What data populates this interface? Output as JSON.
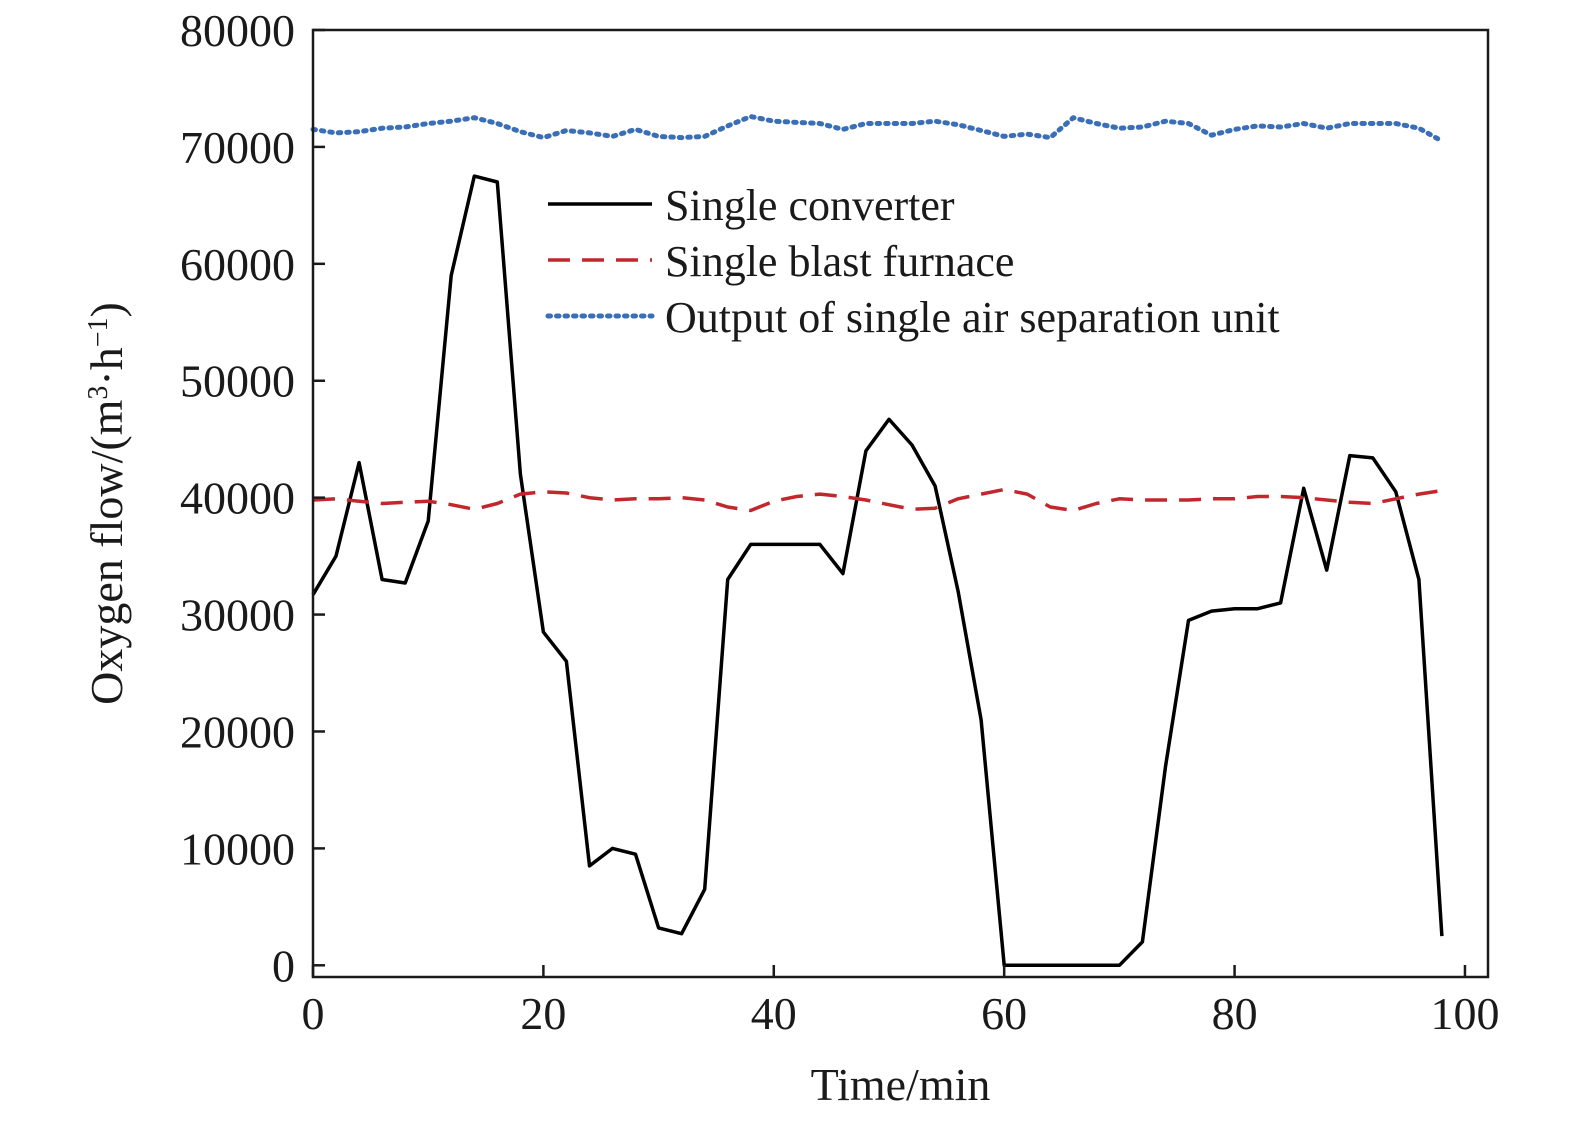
{
  "chart_data": {
    "type": "line",
    "xlabel": "Time/min",
    "ylabel": {
      "main": "Oxygen flow/(m",
      "sup1": "3",
      "mid": "·h",
      "sup2": "−1",
      "end": ")"
    },
    "xlim": [
      0,
      102
    ],
    "ylim": [
      -1000,
      80000
    ],
    "x_ticks": [
      0,
      20,
      40,
      60,
      80,
      100
    ],
    "y_ticks": [
      0,
      10000,
      20000,
      30000,
      40000,
      50000,
      60000,
      70000,
      80000
    ],
    "legend_position": "upper-center",
    "series": [
      {
        "name": "Single converter",
        "color": "#000000",
        "style": "solid",
        "x": [
          0,
          2,
          4,
          6,
          8,
          10,
          12,
          14,
          16,
          18,
          20,
          22,
          24,
          26,
          28,
          30,
          32,
          34,
          36,
          38,
          40,
          42,
          44,
          46,
          48,
          50,
          52,
          54,
          56,
          58,
          60,
          62,
          64,
          66,
          68,
          70,
          72,
          74,
          76,
          78,
          80,
          82,
          84,
          86,
          88,
          90,
          92,
          94,
          96,
          98
        ],
        "values": [
          31700,
          35000,
          43000,
          33000,
          32700,
          38000,
          59000,
          67500,
          67000,
          42000,
          28500,
          26000,
          8500,
          10000,
          9500,
          3200,
          2700,
          6500,
          33000,
          36000,
          36000,
          36000,
          36000,
          33500,
          44000,
          46700,
          44500,
          41000,
          32000,
          21000,
          0,
          0,
          0,
          0,
          0,
          0,
          2000,
          17000,
          29500,
          30300,
          30500,
          30500,
          31000,
          40800,
          33800,
          43600,
          43400,
          40500,
          33000,
          2500
        ]
      },
      {
        "name": "Single blast furnace",
        "color": "#c1272d",
        "style": "dashed",
        "x": [
          0,
          2,
          4,
          6,
          8,
          10,
          12,
          14,
          16,
          18,
          20,
          22,
          24,
          26,
          28,
          30,
          32,
          34,
          36,
          38,
          40,
          42,
          44,
          46,
          48,
          50,
          52,
          54,
          56,
          58,
          60,
          62,
          64,
          66,
          68,
          70,
          72,
          74,
          76,
          78,
          80,
          82,
          84,
          86,
          88,
          90,
          92,
          94,
          96,
          98
        ],
        "values": [
          39800,
          39900,
          39700,
          39500,
          39600,
          39700,
          39400,
          39000,
          39500,
          40300,
          40500,
          40400,
          40000,
          39800,
          39900,
          39900,
          40000,
          39800,
          39200,
          38900,
          39700,
          40100,
          40300,
          40100,
          39800,
          39400,
          39000,
          39100,
          39900,
          40300,
          40700,
          40300,
          39200,
          38900,
          39500,
          39900,
          39800,
          39800,
          39800,
          39900,
          39900,
          40100,
          40100,
          40000,
          39800,
          39600,
          39500,
          39900,
          40300,
          40600
        ]
      },
      {
        "name": "Output of single air separation unit",
        "color": "#3a6fb8",
        "style": "dotted",
        "x": [
          0,
          2,
          4,
          6,
          8,
          10,
          12,
          14,
          16,
          18,
          20,
          22,
          24,
          26,
          28,
          30,
          32,
          34,
          36,
          38,
          40,
          42,
          44,
          46,
          48,
          50,
          52,
          54,
          56,
          58,
          60,
          62,
          64,
          66,
          68,
          70,
          72,
          74,
          76,
          78,
          80,
          82,
          84,
          86,
          88,
          90,
          92,
          94,
          96,
          98
        ],
        "values": [
          71500,
          71200,
          71300,
          71600,
          71700,
          72000,
          72200,
          72500,
          72000,
          71300,
          70800,
          71400,
          71200,
          70900,
          71500,
          70900,
          70800,
          70900,
          71800,
          72600,
          72200,
          72100,
          72000,
          71500,
          72000,
          72000,
          72000,
          72200,
          71900,
          71400,
          70900,
          71100,
          70800,
          72500,
          72000,
          71600,
          71700,
          72200,
          72000,
          71000,
          71500,
          71800,
          71700,
          72000,
          71600,
          72000,
          72000,
          72000,
          71600,
          70500
        ]
      }
    ]
  }
}
